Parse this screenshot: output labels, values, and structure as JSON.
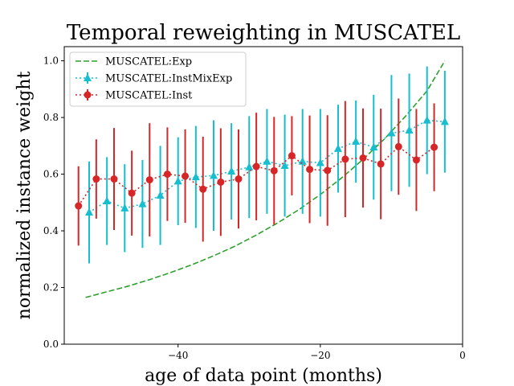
{
  "chart_data": {
    "type": "line",
    "title": "Temporal reweighting in MUSCATEL",
    "xlabel": "age of data point (months)",
    "ylabel": "normalized instance weight",
    "xlim": [
      -56,
      0
    ],
    "ylim": [
      0.0,
      1.05
    ],
    "xticks": [
      -40,
      -20,
      0
    ],
    "xtick_labels": [
      "−40",
      "−20",
      "0"
    ],
    "yticks": [
      0.0,
      0.2,
      0.4,
      0.6,
      0.8,
      1.0
    ],
    "ytick_labels": [
      "0.0",
      "0.2",
      "0.4",
      "0.6",
      "0.8",
      "1.0"
    ],
    "grid": false,
    "legend_position": "top-left",
    "series": [
      {
        "name": "MUSCATEL:Exp",
        "style": "dashed",
        "color": "#2ca02c",
        "x": [
          -53,
          -50,
          -47,
          -44,
          -41,
          -38,
          -35,
          -32,
          -29,
          -26,
          -23,
          -20,
          -17,
          -14,
          -11,
          -8,
          -5,
          -2.5
        ],
        "y": [
          0.165,
          0.185,
          0.205,
          0.228,
          0.253,
          0.281,
          0.312,
          0.346,
          0.385,
          0.428,
          0.475,
          0.528,
          0.587,
          0.652,
          0.724,
          0.805,
          0.894,
          1.0
        ]
      },
      {
        "name": "MUSCATEL:InstMixExp",
        "style": "dotted",
        "marker": "triangle",
        "color": "#17becf",
        "x": [
          -52.5,
          -50,
          -47.5,
          -45,
          -42.5,
          -40,
          -37.5,
          -35,
          -32.5,
          -30,
          -27.5,
          -25,
          -22.5,
          -20,
          -17.5,
          -15,
          -12.5,
          -10,
          -7.5,
          -5,
          -2.5
        ],
        "y": [
          0.465,
          0.505,
          0.48,
          0.495,
          0.525,
          0.575,
          0.59,
          0.595,
          0.61,
          0.625,
          0.645,
          0.63,
          0.645,
          0.64,
          0.69,
          0.715,
          0.695,
          0.745,
          0.755,
          0.79,
          0.785
        ],
        "err": [
          0.18,
          0.155,
          0.155,
          0.155,
          0.175,
          0.155,
          0.18,
          0.195,
          0.17,
          0.18,
          0.185,
          0.18,
          0.185,
          0.19,
          0.155,
          0.145,
          0.185,
          0.205,
          0.2,
          0.19,
          0.18
        ]
      },
      {
        "name": "MUSCATEL:Inst",
        "style": "dotted",
        "marker": "circle",
        "color": "#d62728",
        "x": [
          -54,
          -51.5,
          -49,
          -46.5,
          -44,
          -41.5,
          -39,
          -36.5,
          -34,
          -31.5,
          -29,
          -26.5,
          -24,
          -21.5,
          -19,
          -16.5,
          -14,
          -11.5,
          -9,
          -6.5,
          -4
        ],
        "y": [
          0.488,
          0.583,
          0.583,
          0.533,
          0.58,
          0.6,
          0.593,
          0.547,
          0.572,
          0.583,
          0.627,
          0.612,
          0.665,
          0.617,
          0.613,
          0.653,
          0.657,
          0.636,
          0.697,
          0.65,
          0.695
        ],
        "err": [
          0.14,
          0.14,
          0.18,
          0.15,
          0.2,
          0.165,
          0.165,
          0.185,
          0.19,
          0.175,
          0.19,
          0.19,
          0.14,
          0.19,
          0.195,
          0.205,
          0.175,
          0.195,
          0.17,
          0.18,
          0.155
        ]
      }
    ]
  }
}
